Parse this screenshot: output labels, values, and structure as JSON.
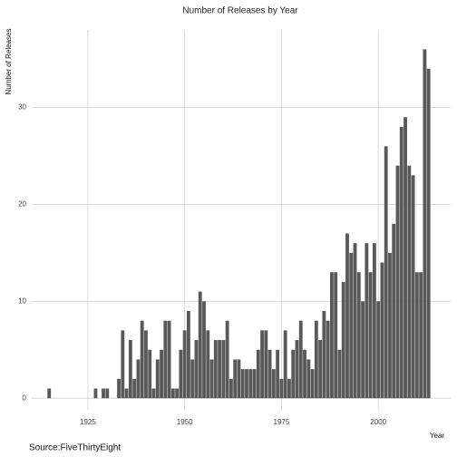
{
  "chart_data": {
    "type": "bar",
    "title": "Number of Releases by Year",
    "x_label": "Year",
    "y_label": "Number of Releases",
    "caption": "Source:FiveThirtyEight",
    "x": [
      1915,
      1927,
      1929,
      1930,
      1933,
      1934,
      1935,
      1936,
      1937,
      1938,
      1939,
      1940,
      1941,
      1942,
      1943,
      1944,
      1945,
      1946,
      1947,
      1948,
      1949,
      1950,
      1951,
      1952,
      1953,
      1954,
      1955,
      1956,
      1957,
      1958,
      1959,
      1960,
      1961,
      1962,
      1963,
      1964,
      1965,
      1966,
      1967,
      1968,
      1969,
      1970,
      1971,
      1972,
      1973,
      1974,
      1975,
      1976,
      1977,
      1978,
      1979,
      1980,
      1981,
      1982,
      1983,
      1984,
      1985,
      1986,
      1987,
      1988,
      1989,
      1990,
      1991,
      1992,
      1993,
      1994,
      1995,
      1996,
      1997,
      1998,
      1999,
      2000,
      2001,
      2002,
      2003,
      2004,
      2005,
      2006,
      2007,
      2008,
      2009,
      2010,
      2011,
      2012,
      2013
    ],
    "values": [
      1,
      1,
      1,
      1,
      2,
      7,
      1,
      6,
      2,
      4,
      8,
      7,
      5,
      1,
      4,
      5,
      8,
      8,
      1,
      1,
      5,
      7,
      9,
      4,
      6,
      11,
      10,
      7,
      4,
      6,
      6,
      6,
      8,
      2,
      4,
      4,
      3,
      3,
      3,
      3,
      5,
      7,
      7,
      5,
      3,
      5,
      2,
      7,
      2,
      5,
      6,
      8,
      5,
      4,
      3,
      8,
      6,
      9,
      8,
      13,
      13,
      5,
      12,
      17,
      15,
      16,
      13,
      10,
      16,
      13,
      16,
      10,
      14,
      26,
      15,
      18,
      24,
      28,
      29,
      24,
      23,
      13,
      13,
      36,
      34
    ],
    "color": "#595959",
    "xlim": [
      1910.5,
      2018.7
    ],
    "xticks": [
      1925,
      1950,
      1975,
      2000
    ],
    "ylim": [
      -1.2,
      38
    ],
    "yticks": [
      0,
      10,
      20,
      30
    ],
    "grid": true
  }
}
